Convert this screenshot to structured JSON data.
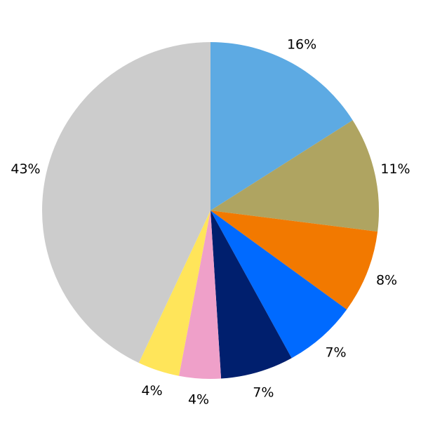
{
  "chart_data": {
    "type": "pie",
    "title": "",
    "start": "top",
    "direction": "clockwise",
    "slices": [
      {
        "value": 16,
        "label": "16%",
        "color": "#5DAAE3"
      },
      {
        "value": 11,
        "label": "11%",
        "color": "#AFA461"
      },
      {
        "value": 8,
        "label": "8%",
        "color": "#F27900"
      },
      {
        "value": 7,
        "label": "7%",
        "color": "#006AFF"
      },
      {
        "value": 7,
        "label": "7%",
        "color": "#001F6E"
      },
      {
        "value": 4,
        "label": "4%",
        "color": "#EFA0C9"
      },
      {
        "value": 4,
        "label": "4%",
        "color": "#FFE55A"
      },
      {
        "value": 43,
        "label": "43%",
        "color": "#CCCCCC"
      }
    ]
  }
}
